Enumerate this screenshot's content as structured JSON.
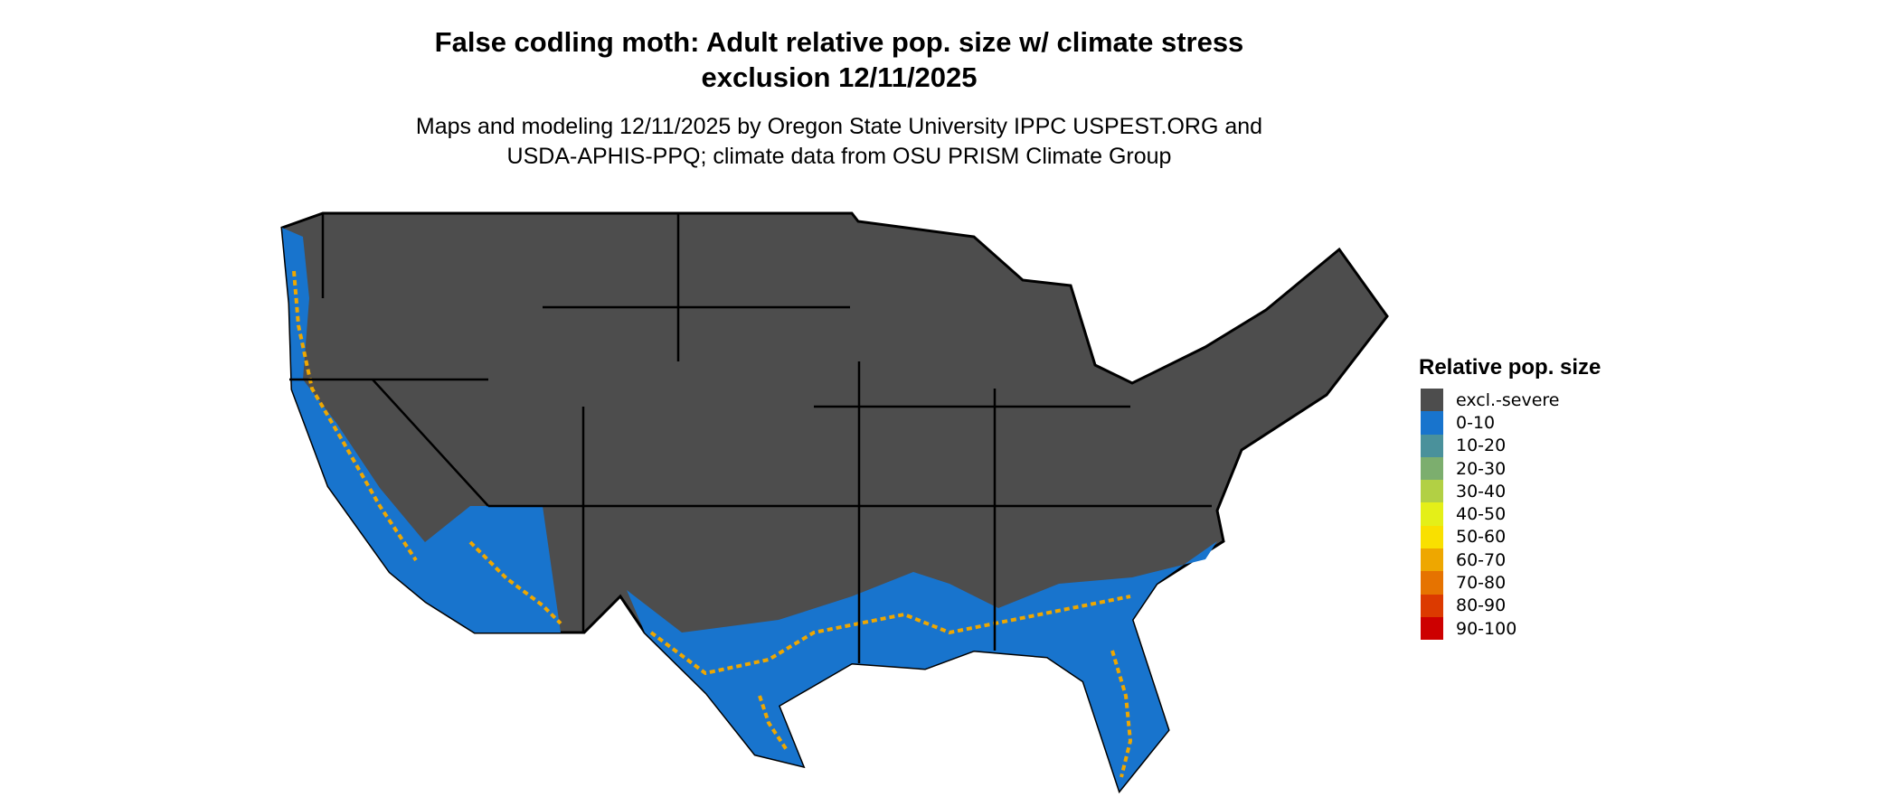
{
  "title_line1": "False codling moth: Adult relative pop. size w/ climate stress",
  "title_line2": "exclusion 12/11/2025",
  "subtitle_line1": "Maps and modeling 12/11/2025 by Oregon State University IPPC USPEST.ORG and",
  "subtitle_line2": "USDA-APHIS-PPQ; climate data from OSU PRISM Climate Group",
  "legend": {
    "title": "Relative pop. size",
    "items": [
      {
        "label": "excl.-severe",
        "color": "#4d4d4d"
      },
      {
        "label": "0-10",
        "color": "#1874cd"
      },
      {
        "label": "10-20",
        "color": "#4a919b"
      },
      {
        "label": "20-30",
        "color": "#7cae6e"
      },
      {
        "label": "30-40",
        "color": "#b2d044"
      },
      {
        "label": "40-50",
        "color": "#e4ef18"
      },
      {
        "label": "50-60",
        "color": "#f9e000"
      },
      {
        "label": "60-70",
        "color": "#eea700"
      },
      {
        "label": "70-80",
        "color": "#e67300"
      },
      {
        "label": "80-90",
        "color": "#dc3a00"
      },
      {
        "label": "90-100",
        "color": "#cd0000"
      }
    ]
  }
}
